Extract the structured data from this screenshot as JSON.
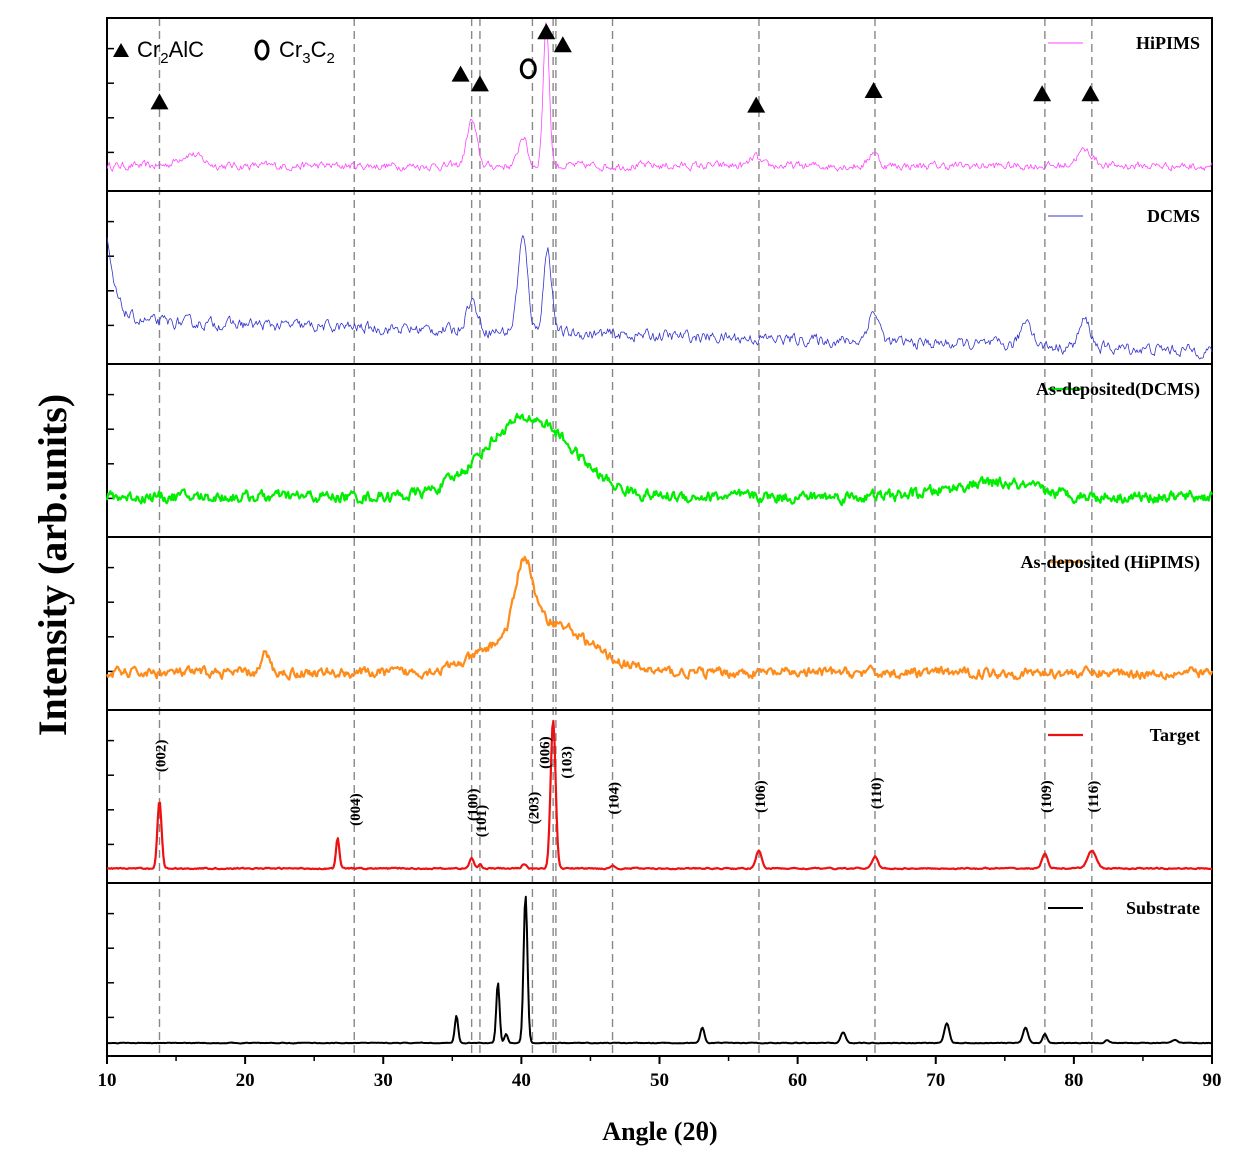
{
  "chart_data": {
    "type": "line",
    "xlabel": "Angle (2θ)",
    "ylabel": "Intensity (arb.units)",
    "xlim": [
      10,
      90
    ],
    "xticks": [
      "10",
      "20",
      "30",
      "40",
      "50",
      "60",
      "70",
      "80",
      "90"
    ],
    "reference_lines_x": [
      13.8,
      27.9,
      36.4,
      37.0,
      40.8,
      42.3,
      42.5,
      46.6,
      57.2,
      65.6,
      77.9,
      81.3
    ],
    "marker_legend": {
      "triangle_label": "Cr₂AlC",
      "circle_label": "Cr₃C₂"
    },
    "marker_legend_parts": {
      "cr2alc_base": "Cr",
      "cr2alc_sub": "2",
      "cr2alc_tail": "AlC",
      "cr3c2_base": "Cr",
      "cr3c2_sub": "3",
      "cr3c2_mid": "C",
      "cr3c2_sub2": "2"
    },
    "markers": [
      {
        "type": "triangle",
        "x": 13.8,
        "level": 0.55
      },
      {
        "type": "triangle",
        "x": 35.6,
        "level": 0.72
      },
      {
        "type": "triangle",
        "x": 37.0,
        "level": 0.66
      },
      {
        "type": "circle",
        "x": 40.5,
        "level": 0.75
      },
      {
        "type": "triangle",
        "x": 41.8,
        "level": 0.98
      },
      {
        "type": "triangle",
        "x": 43.0,
        "level": 0.9
      },
      {
        "type": "triangle",
        "x": 57.0,
        "level": 0.53
      },
      {
        "type": "triangle",
        "x": 65.5,
        "level": 0.62
      },
      {
        "type": "triangle",
        "x": 77.7,
        "level": 0.6
      },
      {
        "type": "triangle",
        "x": 81.2,
        "level": 0.6
      }
    ],
    "peak_labels": [
      {
        "text": "(002)",
        "x": 13.8,
        "level": 0.78
      },
      {
        "text": "(004)",
        "x": 27.9,
        "level": 0.45
      },
      {
        "text": "(100)",
        "x": 36.4,
        "level": 0.48
      },
      {
        "text": "(101)",
        "x": 37.0,
        "level": 0.38
      },
      {
        "text": "(203)",
        "x": 40.8,
        "level": 0.46
      },
      {
        "text": "(006)",
        "x": 41.6,
        "level": 0.8
      },
      {
        "text": "(103)",
        "x": 43.2,
        "level": 0.74
      },
      {
        "text": "(104)",
        "x": 46.6,
        "level": 0.52
      },
      {
        "text": "(106)",
        "x": 57.2,
        "level": 0.53
      },
      {
        "text": "(110)",
        "x": 65.6,
        "level": 0.55
      },
      {
        "text": "(109)",
        "x": 77.9,
        "level": 0.53
      },
      {
        "text": "(116)",
        "x": 81.3,
        "level": 0.53
      }
    ],
    "series": [
      {
        "name": "HiPIMS",
        "color": "#ff44ff",
        "line_width": 0.8,
        "baseline": 0.1,
        "noise": 0.05,
        "peaks": [
          [
            16,
            0.08,
            0.8
          ],
          [
            36.4,
            0.3,
            0.35
          ],
          [
            40.1,
            0.2,
            0.3
          ],
          [
            41.8,
            0.95,
            0.22
          ],
          [
            56.9,
            0.06,
            0.3
          ],
          [
            65.5,
            0.1,
            0.3
          ],
          [
            80.8,
            0.1,
            0.6
          ]
        ],
        "slope": 0,
        "start_rise": 0
      },
      {
        "name": "DCMS",
        "color": "#3333cc",
        "line_width": 0.8,
        "baseline": 0.22,
        "noise": 0.07,
        "peaks": [
          [
            36.4,
            0.2,
            0.4
          ],
          [
            40.1,
            0.62,
            0.35
          ],
          [
            41.9,
            0.55,
            0.3
          ],
          [
            65.5,
            0.2,
            0.4
          ],
          [
            76.6,
            0.18,
            0.4
          ],
          [
            80.8,
            0.18,
            0.4
          ]
        ],
        "slope": -0.0025,
        "start_rise": 0.55
      },
      {
        "name": "As-deposited(DCMS)",
        "color": "#00ee00",
        "line_width": 2.2,
        "baseline": 0.2,
        "noise": 0.07,
        "peaks": [
          [
            40.5,
            0.52,
            3.2
          ],
          [
            74,
            0.09,
            3
          ]
        ],
        "slope": 0,
        "start_rise": 0
      },
      {
        "name": "As-deposited (HiPIMS)",
        "color": "#ff8c1a",
        "line_width": 2.2,
        "baseline": 0.18,
        "noise": 0.06,
        "peaks": [
          [
            40.2,
            0.45,
            0.6
          ],
          [
            41.5,
            0.35,
            3.2
          ],
          [
            21.5,
            0.12,
            0.3
          ]
        ],
        "slope": 0,
        "start_rise": 0
      },
      {
        "name": "Target",
        "color": "#ee1111",
        "line_width": 2.2,
        "baseline": 0.03,
        "noise": 0.008,
        "peaks": [
          [
            13.8,
            0.45,
            0.15
          ],
          [
            26.7,
            0.2,
            0.12
          ],
          [
            36.4,
            0.07,
            0.15
          ],
          [
            37.0,
            0.03,
            0.12
          ],
          [
            42.3,
            0.98,
            0.18
          ],
          [
            40.2,
            0.03,
            0.15
          ],
          [
            46.6,
            0.02,
            0.15
          ],
          [
            57.2,
            0.12,
            0.2
          ],
          [
            65.6,
            0.08,
            0.2
          ],
          [
            77.9,
            0.1,
            0.2
          ],
          [
            81.3,
            0.12,
            0.3
          ]
        ],
        "slope": 0,
        "start_rise": 0
      },
      {
        "name": "Substrate",
        "color": "#000000",
        "line_width": 2.0,
        "baseline": 0.02,
        "noise": 0.004,
        "peaks": [
          [
            35.3,
            0.18,
            0.12
          ],
          [
            38.3,
            0.4,
            0.12
          ],
          [
            38.9,
            0.06,
            0.12
          ],
          [
            40.3,
            0.98,
            0.14
          ],
          [
            53.1,
            0.1,
            0.15
          ],
          [
            63.3,
            0.07,
            0.18
          ],
          [
            70.8,
            0.13,
            0.18
          ],
          [
            76.5,
            0.1,
            0.18
          ],
          [
            77.9,
            0.06,
            0.15
          ],
          [
            82.4,
            0.02,
            0.15
          ],
          [
            87.3,
            0.02,
            0.2
          ]
        ],
        "slope": 0,
        "start_rise": 0
      }
    ]
  }
}
